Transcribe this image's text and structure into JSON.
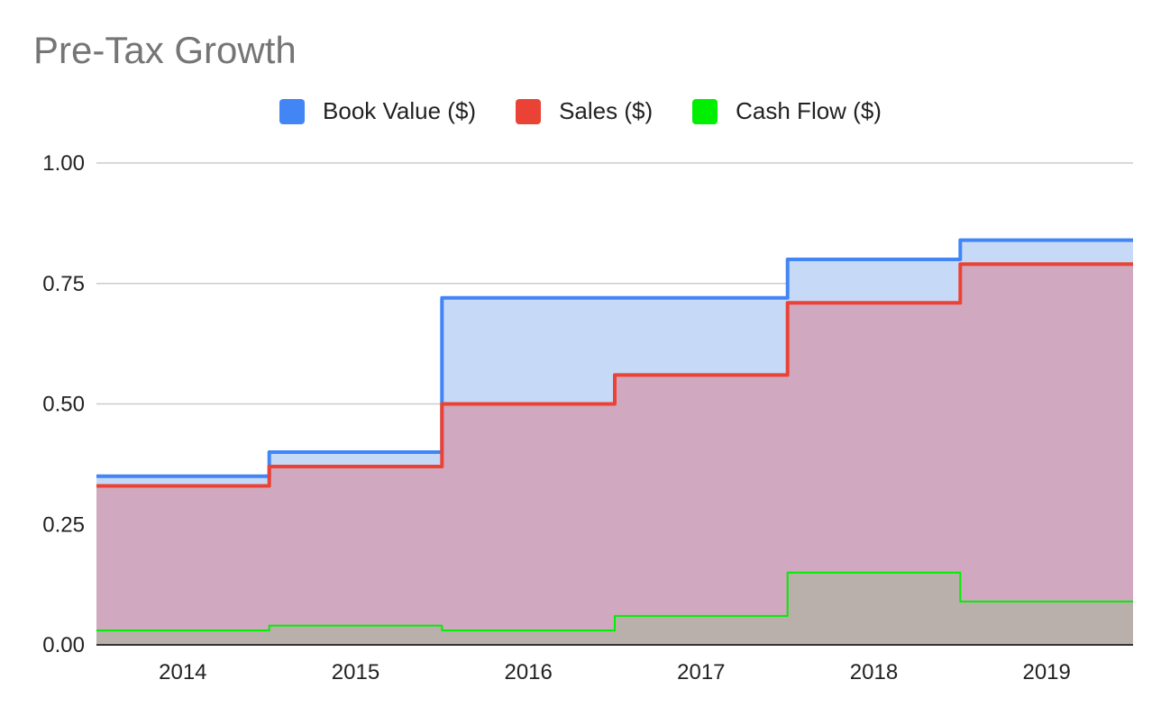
{
  "chart_data": {
    "type": "area",
    "title": "Pre-Tax Growth",
    "xlabel": "",
    "ylabel": "",
    "categories": [
      "2014",
      "2015",
      "2016",
      "2017",
      "2018",
      "2019"
    ],
    "ylim": [
      0,
      1
    ],
    "yticks": [
      "0.00",
      "0.25",
      "0.50",
      "0.75",
      "1.00"
    ],
    "ytick_values": [
      0,
      0.25,
      0.5,
      0.75,
      1.0
    ],
    "grid": true,
    "legend_position": "top",
    "stepped": true,
    "series": [
      {
        "name": "Book Value ($)",
        "values": [
          0.35,
          0.4,
          0.72,
          0.72,
          0.8,
          0.84
        ],
        "color": "#4285f4",
        "fill": "#c6d9f7"
      },
      {
        "name": "Sales ($)",
        "values": [
          0.33,
          0.37,
          0.5,
          0.56,
          0.71,
          0.79
        ],
        "color": "#ea4335",
        "fill": "#d0a8bf"
      },
      {
        "name": "Cash Flow ($)",
        "values": [
          0.03,
          0.04,
          0.03,
          0.06,
          0.15,
          0.09
        ],
        "color": "#00ee00",
        "fill": "#bab0ab"
      }
    ]
  }
}
